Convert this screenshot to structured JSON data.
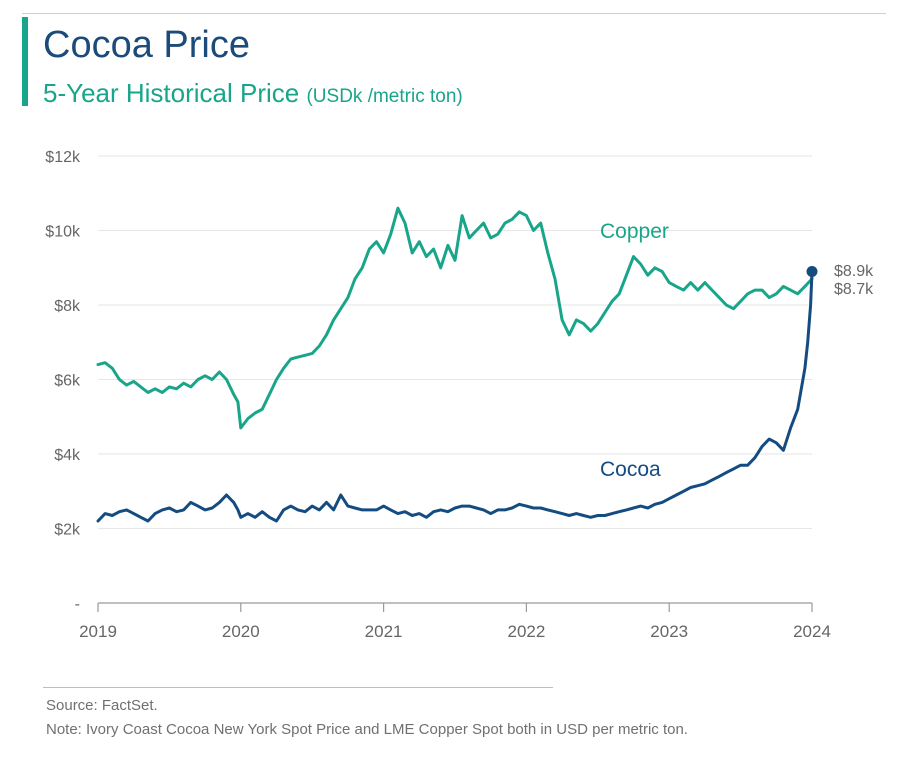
{
  "header": {
    "title": "Cocoa Price",
    "subtitle": "5-Year Historical Price",
    "unit": "(USDk /metric ton)"
  },
  "footer": {
    "source": "Source: FactSet.",
    "note": "Note: Ivory Coast Cocoa New York Spot Price and LME Copper Spot both in USD per metric ton."
  },
  "colors": {
    "cocoa": "#144c82",
    "copper": "#19a58a",
    "title": "#1b4b7a",
    "grid": "#e6e6e6",
    "axis_text": "#666666"
  },
  "chart_data": {
    "type": "line",
    "title": "Cocoa Price",
    "subtitle": "5-Year Historical Price (USDk /metric ton)",
    "xlabel": "",
    "ylabel": "",
    "xlim": [
      2019,
      2024
    ],
    "ylim": [
      0,
      12000
    ],
    "x_ticks": [
      2019,
      2020,
      2021,
      2022,
      2023,
      2024
    ],
    "x_tick_labels": [
      "2019",
      "2020",
      "2021",
      "2022",
      "2023",
      "2024"
    ],
    "y_ticks": [
      0,
      2000,
      4000,
      6000,
      8000,
      10000,
      12000
    ],
    "y_tick_labels": [
      "-",
      "$2k",
      "$4k",
      "$6k",
      "$8k",
      "$10k",
      "$12k"
    ],
    "grid": "horizontal",
    "series": [
      {
        "name": "Copper",
        "color": "#19a58a",
        "end_label": "$8.7k",
        "x": [
          2019.0,
          2019.05,
          2019.1,
          2019.15,
          2019.2,
          2019.25,
          2019.3,
          2019.35,
          2019.4,
          2019.45,
          2019.5,
          2019.55,
          2019.6,
          2019.65,
          2019.7,
          2019.75,
          2019.8,
          2019.85,
          2019.9,
          2019.95,
          2019.98,
          2020.0,
          2020.05,
          2020.1,
          2020.15,
          2020.2,
          2020.25,
          2020.3,
          2020.35,
          2020.4,
          2020.45,
          2020.5,
          2020.55,
          2020.6,
          2020.65,
          2020.7,
          2020.75,
          2020.8,
          2020.85,
          2020.9,
          2020.95,
          2021.0,
          2021.05,
          2021.1,
          2021.15,
          2021.2,
          2021.25,
          2021.3,
          2021.35,
          2021.4,
          2021.45,
          2021.5,
          2021.55,
          2021.6,
          2021.65,
          2021.7,
          2021.75,
          2021.8,
          2021.85,
          2021.9,
          2021.95,
          2022.0,
          2022.05,
          2022.1,
          2022.15,
          2022.2,
          2022.25,
          2022.3,
          2022.35,
          2022.4,
          2022.45,
          2022.5,
          2022.55,
          2022.6,
          2022.65,
          2022.7,
          2022.75,
          2022.8,
          2022.85,
          2022.9,
          2022.95,
          2023.0,
          2023.05,
          2023.1,
          2023.15,
          2023.2,
          2023.25,
          2023.3,
          2023.35,
          2023.4,
          2023.45,
          2023.5,
          2023.55,
          2023.6,
          2023.65,
          2023.7,
          2023.75,
          2023.8,
          2023.85,
          2023.9,
          2023.95,
          2024.0
        ],
        "values": [
          6400,
          6450,
          6300,
          6000,
          5850,
          5950,
          5800,
          5650,
          5750,
          5650,
          5800,
          5750,
          5900,
          5800,
          6000,
          6100,
          6000,
          6200,
          6000,
          5600,
          5400,
          4700,
          4950,
          5100,
          5200,
          5600,
          6000,
          6300,
          6550,
          6600,
          6650,
          6700,
          6900,
          7200,
          7600,
          7900,
          8200,
          8700,
          9000,
          9500,
          9700,
          9400,
          9900,
          10600,
          10200,
          9400,
          9700,
          9300,
          9500,
          9000,
          9600,
          9200,
          10400,
          9800,
          10000,
          10200,
          9800,
          9900,
          10200,
          10300,
          10500,
          10400,
          10000,
          10200,
          9400,
          8700,
          7600,
          7200,
          7600,
          7500,
          7300,
          7500,
          7800,
          8100,
          8300,
          8800,
          9300,
          9100,
          8800,
          9000,
          8900,
          8600,
          8500,
          8400,
          8600,
          8400,
          8600,
          8400,
          8200,
          8000,
          7900,
          8100,
          8300,
          8400,
          8400,
          8200,
          8300,
          8500,
          8400,
          8300,
          8500,
          8700
        ]
      },
      {
        "name": "Cocoa",
        "color": "#144c82",
        "end_label": "$8.9k",
        "x": [
          2019.0,
          2019.05,
          2019.1,
          2019.15,
          2019.2,
          2019.25,
          2019.3,
          2019.35,
          2019.4,
          2019.45,
          2019.5,
          2019.55,
          2019.6,
          2019.65,
          2019.7,
          2019.75,
          2019.8,
          2019.85,
          2019.9,
          2019.95,
          2019.98,
          2020.0,
          2020.05,
          2020.1,
          2020.15,
          2020.2,
          2020.25,
          2020.3,
          2020.35,
          2020.4,
          2020.45,
          2020.5,
          2020.55,
          2020.6,
          2020.65,
          2020.7,
          2020.75,
          2020.8,
          2020.85,
          2020.9,
          2020.95,
          2021.0,
          2021.05,
          2021.1,
          2021.15,
          2021.2,
          2021.25,
          2021.3,
          2021.35,
          2021.4,
          2021.45,
          2021.5,
          2021.55,
          2021.6,
          2021.65,
          2021.7,
          2021.75,
          2021.8,
          2021.85,
          2021.9,
          2021.95,
          2022.0,
          2022.05,
          2022.1,
          2022.15,
          2022.2,
          2022.25,
          2022.3,
          2022.35,
          2022.4,
          2022.45,
          2022.5,
          2022.55,
          2022.6,
          2022.65,
          2022.7,
          2022.75,
          2022.8,
          2022.85,
          2022.9,
          2022.95,
          2023.0,
          2023.05,
          2023.1,
          2023.15,
          2023.2,
          2023.25,
          2023.3,
          2023.35,
          2023.4,
          2023.45,
          2023.5,
          2023.55,
          2023.6,
          2023.65,
          2023.7,
          2023.75,
          2023.8,
          2023.85,
          2023.9,
          2023.95,
          2023.97,
          2023.99,
          2024.0
        ],
        "values": [
          2200,
          2400,
          2350,
          2450,
          2500,
          2400,
          2300,
          2200,
          2400,
          2500,
          2550,
          2450,
          2500,
          2700,
          2600,
          2500,
          2550,
          2700,
          2900,
          2700,
          2500,
          2300,
          2400,
          2300,
          2450,
          2300,
          2200,
          2500,
          2600,
          2500,
          2450,
          2600,
          2500,
          2700,
          2500,
          2900,
          2600,
          2550,
          2500,
          2500,
          2500,
          2600,
          2500,
          2400,
          2450,
          2350,
          2400,
          2300,
          2450,
          2500,
          2450,
          2550,
          2600,
          2600,
          2550,
          2500,
          2400,
          2500,
          2500,
          2550,
          2650,
          2600,
          2550,
          2550,
          2500,
          2450,
          2400,
          2350,
          2400,
          2350,
          2300,
          2350,
          2350,
          2400,
          2450,
          2500,
          2550,
          2600,
          2550,
          2650,
          2700,
          2800,
          2900,
          3000,
          3100,
          3150,
          3200,
          3300,
          3400,
          3500,
          3600,
          3700,
          3700,
          3900,
          4200,
          4400,
          4300,
          4100,
          4700,
          5200,
          6300,
          7000,
          8000,
          8900
        ]
      }
    ]
  }
}
